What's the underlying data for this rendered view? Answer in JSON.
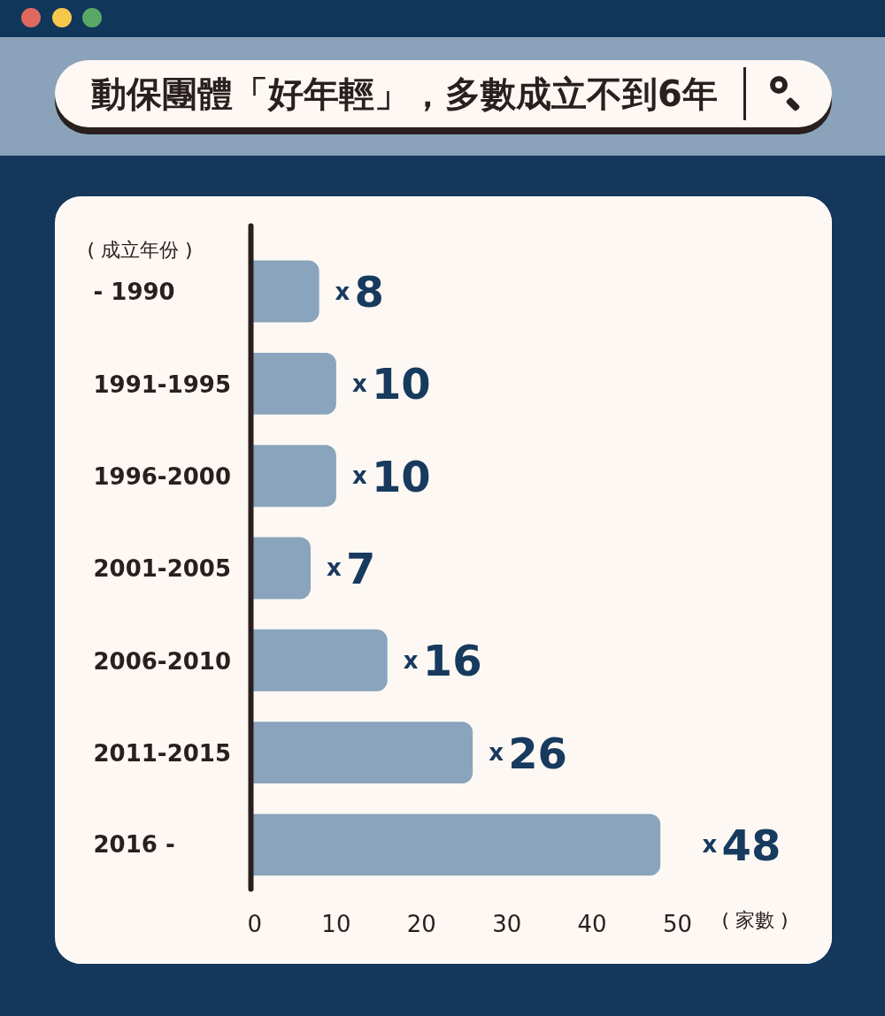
{
  "chart_data": {
    "type": "bar",
    "orientation": "horizontal",
    "title": "動保團體「好年輕」，多數成立不到6年",
    "ylabel": "( 成立年份 )",
    "xlabel": "( 家數 )",
    "categories": [
      "- 1990",
      "1991-1995",
      "1996-2000",
      "2001-2005",
      "2006-2010",
      "2011-2015",
      "2016 -"
    ],
    "values": [
      8,
      10,
      10,
      7,
      16,
      26,
      48
    ],
    "value_labels": [
      "x8",
      "x10",
      "x10",
      "x7",
      "x16",
      "x26",
      "x48"
    ],
    "color": "#89a4bc",
    "xlim": [
      0,
      50
    ],
    "xticks": [
      0,
      10,
      20,
      30,
      40,
      50
    ],
    "grid": false
  }
}
